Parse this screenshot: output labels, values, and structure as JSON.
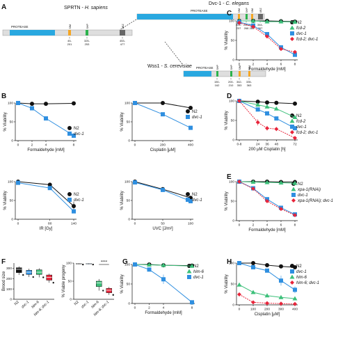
{
  "colors": {
    "protease": "#29a8e0",
    "sim": "#f5a623",
    "shp": "#2bb24c",
    "ubz": "#666666",
    "black": "#111111",
    "blue": "#2f8fe0",
    "green": "#3cc07a",
    "red": "#e8243a",
    "grey": "#9a9a9a"
  },
  "panelA": {
    "label": "A",
    "human": {
      "title_a": "SPRTN - ",
      "title_b": "H. sapiens",
      "domain": "PROTEASE",
      "ticks": [
        {
          "name": "SIM",
          "range": "45-\n201"
        },
        {
          "name": "SHP",
          "range": "325-\n253"
        },
        {
          "name": "UBZ",
          "range": "453-\n477"
        }
      ]
    },
    "worm": {
      "title_a": "Dvc-1 - ",
      "title_b": "C. elegans",
      "domain": "PROTEASE",
      "ticks": [
        {
          "name": "SIM",
          "range": "224-\n237"
        },
        {
          "name": "SHP",
          "range": "259-\n268"
        },
        {
          "name": "SIM",
          "range": "279-\n285"
        },
        {
          "name": "UBZ",
          "range": "344-\n367"
        }
      ]
    },
    "yeast": {
      "title_a": "Wss1 - ",
      "title_b": "S. cerevisiae",
      "domain": "PROTEASE",
      "ticks": [
        {
          "name": "SHP",
          "range": "150-\n162"
        },
        {
          "name": "SHP",
          "range": "200-\n210"
        },
        {
          "name": "SIM",
          "range": "342-\n353"
        },
        {
          "name": "SIM",
          "range": "335-\n363"
        }
      ]
    }
  },
  "chart_data": [
    {
      "id": "B1",
      "panel": "B",
      "type": "line",
      "xlabel": "Formaldehyde [mM]",
      "ylabel": "% Viability",
      "x": [
        0,
        2,
        4,
        8
      ],
      "xticks": [
        "0",
        "2",
        "4",
        "8"
      ],
      "ylim": [
        0,
        100
      ],
      "yticks": [
        "0",
        "50",
        "100"
      ],
      "series": [
        {
          "name": "N2",
          "marker": "circle",
          "color": "#111111",
          "values": [
            100,
            98,
            98,
            99
          ],
          "err": [
            0,
            1,
            1,
            1
          ]
        },
        {
          "name": "dvc-1",
          "marker": "square",
          "color": "#2f8fe0",
          "values": [
            100,
            86,
            59,
            13
          ],
          "err": [
            0,
            3,
            4,
            3
          ]
        }
      ]
    },
    {
      "id": "B2",
      "panel": "",
      "type": "line",
      "xlabel": "Cisplatin [μM]",
      "ylabel": "% Viability",
      "x": [
        0,
        200,
        400
      ],
      "xticks": [
        "0",
        "200",
        "400"
      ],
      "ylim": [
        0,
        100
      ],
      "yticks": [
        "0",
        "50",
        "100"
      ],
      "series": [
        {
          "name": "N2",
          "marker": "circle",
          "color": "#111111",
          "values": [
            100,
            100,
            87
          ],
          "err": [
            0,
            2,
            3
          ]
        },
        {
          "name": "dvc-1",
          "marker": "square",
          "color": "#2f8fe0",
          "values": [
            100,
            70,
            34
          ],
          "err": [
            0,
            3,
            3
          ]
        }
      ]
    },
    {
      "id": "B3",
      "panel": "",
      "type": "line",
      "xlabel": "IR [Gy]",
      "ylabel": "% Viability",
      "x": [
        0,
        80,
        140
      ],
      "xticks": [
        "0",
        "80",
        "140"
      ],
      "ylim": [
        0,
        100
      ],
      "yticks": [
        "0",
        "50",
        "100"
      ],
      "series": [
        {
          "name": "N2",
          "marker": "circle",
          "color": "#111111",
          "values": [
            100,
            92,
            35
          ],
          "err": [
            0,
            3,
            12
          ]
        },
        {
          "name": "dvc-1",
          "marker": "square",
          "color": "#2f8fe0",
          "values": [
            97,
            83,
            21
          ],
          "err": [
            0,
            3,
            4
          ]
        }
      ]
    },
    {
      "id": "B4",
      "panel": "",
      "type": "line",
      "xlabel": "UVC [J/m²]",
      "ylabel": "% Viability",
      "x": [
        0,
        50,
        100
      ],
      "xticks": [
        "0",
        "50",
        "100"
      ],
      "ylim": [
        0,
        100
      ],
      "yticks": [
        "0",
        "50",
        "100"
      ],
      "series": [
        {
          "name": "N2",
          "marker": "circle",
          "color": "#111111",
          "values": [
            100,
            80,
            57
          ],
          "err": [
            0,
            3,
            5
          ]
        },
        {
          "name": "dvc-1",
          "marker": "square",
          "color": "#2f8fe0",
          "values": [
            98,
            78,
            48
          ],
          "err": [
            0,
            3,
            4
          ]
        }
      ]
    },
    {
      "id": "C",
      "panel": "C",
      "type": "line",
      "xlabel": "Formaldehyde [mM]",
      "ylabel": "% Viability",
      "x": [
        0,
        2,
        4,
        6,
        8
      ],
      "xticks": [
        "0",
        "2",
        "4",
        "6",
        "8"
      ],
      "ylim": [
        0,
        100
      ],
      "yticks": [
        "0",
        "50",
        "100"
      ],
      "series": [
        {
          "name": "N2",
          "marker": "circle",
          "color": "#111111",
          "values": [
            100,
            100,
            100,
            99,
            98
          ],
          "err": [
            0,
            1,
            1,
            1,
            1
          ]
        },
        {
          "name": "fcd-2",
          "marker": "triangle",
          "color": "#3cc07a",
          "values": [
            100,
            100,
            98,
            98,
            97
          ],
          "err": [
            0,
            1,
            1,
            1,
            1
          ]
        },
        {
          "name": "dvc-1",
          "marker": "square",
          "color": "#2f8fe0",
          "values": [
            97,
            88,
            66,
            32,
            13
          ],
          "err": [
            0,
            4,
            5,
            5,
            3
          ]
        },
        {
          "name": "fcd-2; dvc-1",
          "marker": "diamond",
          "color": "#e8243a",
          "values": [
            95,
            85,
            60,
            28,
            20
          ],
          "err": [
            0,
            3,
            4,
            4,
            3
          ]
        }
      ]
    },
    {
      "id": "D",
      "panel": "D",
      "type": "line",
      "xlabel": "200 μM Cisplatin [h]",
      "ylabel": "% Viability",
      "x": [
        0,
        24,
        36,
        48,
        72
      ],
      "xticks": [
        "0-8",
        "24",
        "36",
        "48",
        "72"
      ],
      "ylim": [
        0,
        100
      ],
      "yticks": [
        "0",
        "50",
        "100"
      ],
      "series": [
        {
          "name": "N2",
          "marker": "circle",
          "color": "#111111",
          "values": [
            100,
            98,
            96,
            95,
            93
          ],
          "err": [
            0,
            1,
            1,
            1,
            1
          ]
        },
        {
          "name": "fcd-2",
          "marker": "triangle",
          "color": "#3cc07a",
          "values": [
            100,
            90,
            85,
            80,
            58
          ],
          "err": [
            0,
            3,
            3,
            3,
            4
          ]
        },
        {
          "name": "dvc-1",
          "marker": "square",
          "color": "#2f8fe0",
          "values": [
            100,
            78,
            68,
            55,
            30
          ],
          "err": [
            0,
            4,
            4,
            4,
            4
          ]
        },
        {
          "name": "fcd-2; dvc-1",
          "marker": "diamond",
          "color": "#e8243a",
          "values": [
            100,
            45,
            30,
            28,
            5
          ],
          "err": [
            0,
            8,
            6,
            5,
            2
          ]
        }
      ]
    },
    {
      "id": "E",
      "panel": "E",
      "type": "line",
      "xlabel": "Formaldehyde [mM]",
      "ylabel": "% Viability",
      "x": [
        0,
        2,
        4,
        6,
        8
      ],
      "xticks": [
        "0",
        "2",
        "4",
        "6",
        "8"
      ],
      "ylim": [
        0,
        100
      ],
      "yticks": [
        "0",
        "50",
        "100"
      ],
      "series": [
        {
          "name": "N2",
          "marker": "circle",
          "color": "#111111",
          "values": [
            100,
            100,
            100,
            99,
            99
          ],
          "err": [
            0,
            1,
            1,
            1,
            1
          ]
        },
        {
          "name": "xpa-1(RNAi)",
          "marker": "triangle",
          "color": "#3cc07a",
          "values": [
            100,
            99,
            98,
            97,
            96
          ],
          "err": [
            0,
            1,
            1,
            1,
            1
          ]
        },
        {
          "name": "dvc-1",
          "marker": "square",
          "color": "#2f8fe0",
          "values": [
            100,
            83,
            55,
            33,
            16
          ],
          "err": [
            0,
            3,
            4,
            4,
            3
          ]
        },
        {
          "name": "xpa-1(RNAi); dvc-1",
          "marker": "diamond",
          "color": "#e8243a",
          "values": [
            100,
            82,
            50,
            30,
            14
          ],
          "err": [
            0,
            3,
            4,
            4,
            3
          ]
        }
      ]
    },
    {
      "id": "F1",
      "panel": "F",
      "type": "box",
      "ylabel": "Brood size",
      "categories": [
        "N2",
        "dvc-1",
        "him-6",
        "him-6; dvc-1"
      ],
      "ylim": [
        0,
        350
      ],
      "yticks": [
        "0",
        "100",
        "200",
        "300"
      ],
      "boxes": [
        {
          "color": "#111111",
          "min": 235,
          "q1": 258,
          "median": 290,
          "q3": 305,
          "max": 318
        },
        {
          "color": "#2f8fe0",
          "min": 215,
          "q1": 240,
          "median": 262,
          "q3": 280,
          "max": 296
        },
        {
          "color": "#3cc07a",
          "min": 212,
          "q1": 240,
          "median": 262,
          "q3": 285,
          "max": 300
        },
        {
          "color": "#e8243a",
          "min": 160,
          "q1": 185,
          "median": 212,
          "q3": 235,
          "max": 248
        }
      ]
    },
    {
      "id": "F2",
      "panel": "",
      "type": "box",
      "ylabel": "% Viable progeny",
      "categories": [
        "N2",
        "dvc-1",
        "him-6",
        "him-6; dvc-1"
      ],
      "ylim": [
        0,
        100
      ],
      "yticks": [
        "0",
        "50",
        "100"
      ],
      "significance": "****",
      "boxes": [
        {
          "color": "#111111",
          "min": 96,
          "q1": 97,
          "median": 98,
          "q3": 99,
          "max": 100
        },
        {
          "color": "#2f8fe0",
          "min": 96,
          "q1": 97,
          "median": 98,
          "q3": 99,
          "max": 100
        },
        {
          "color": "#3cc07a",
          "min": 24,
          "q1": 35,
          "median": 45,
          "q3": 50,
          "max": 56
        },
        {
          "color": "#e8243a",
          "min": 12,
          "q1": 18,
          "median": 25,
          "q3": 30,
          "max": 34
        }
      ]
    },
    {
      "id": "G",
      "panel": "G",
      "type": "line",
      "xlabel": "Formaldehyde [mM]",
      "ylabel": "% Viability",
      "x": [
        0,
        2,
        4,
        8
      ],
      "xticks": [
        "0",
        "2",
        "4",
        "8"
      ],
      "ylim": [
        0,
        100
      ],
      "yticks": [
        "0",
        "50",
        "100"
      ],
      "series": [
        {
          "name": "N2",
          "marker": "circle",
          "color": "#111111",
          "values": [
            100,
            100,
            98,
            97
          ],
          "err": [
            0,
            1,
            1,
            2
          ]
        },
        {
          "name": "him-6",
          "marker": "triangle",
          "color": "#3cc07a",
          "values": [
            100,
            99,
            98,
            96
          ],
          "err": [
            0,
            1,
            2,
            2
          ]
        },
        {
          "name": "dvc-1",
          "marker": "square",
          "color": "#2f8fe0",
          "values": [
            100,
            87,
            62,
            3
          ],
          "err": [
            0,
            4,
            12,
            1
          ]
        }
      ]
    },
    {
      "id": "H",
      "panel": "H",
      "type": "line",
      "xlabel": "Cisplatin [μM]",
      "ylabel": "% Viability",
      "x": [
        0,
        100,
        200,
        300,
        400
      ],
      "xticks": [
        "0",
        "100",
        "200",
        "300",
        "400"
      ],
      "ylim": [
        0,
        100
      ],
      "yticks": [
        "0",
        "50",
        "100"
      ],
      "series": [
        {
          "name": "N2",
          "marker": "circle",
          "color": "#111111",
          "values": [
            100,
            100,
            95,
            92,
            90
          ],
          "err": [
            0,
            1,
            2,
            2,
            2
          ]
        },
        {
          "name": "dvc-1",
          "marker": "square",
          "color": "#2f8fe0",
          "values": [
            100,
            90,
            82,
            58,
            36
          ],
          "err": [
            0,
            3,
            4,
            12,
            8
          ]
        },
        {
          "name": "him-6",
          "marker": "triangle",
          "color": "#3cc07a",
          "values": [
            48,
            30,
            22,
            18,
            15
          ],
          "err": [
            0,
            4,
            3,
            2,
            2
          ]
        },
        {
          "name": "him-6; dvc-1",
          "marker": "diamond",
          "color": "#e8243a",
          "values": [
            25,
            6,
            4,
            3,
            2
          ],
          "err": [
            0,
            2,
            1,
            1,
            1
          ]
        }
      ]
    }
  ]
}
